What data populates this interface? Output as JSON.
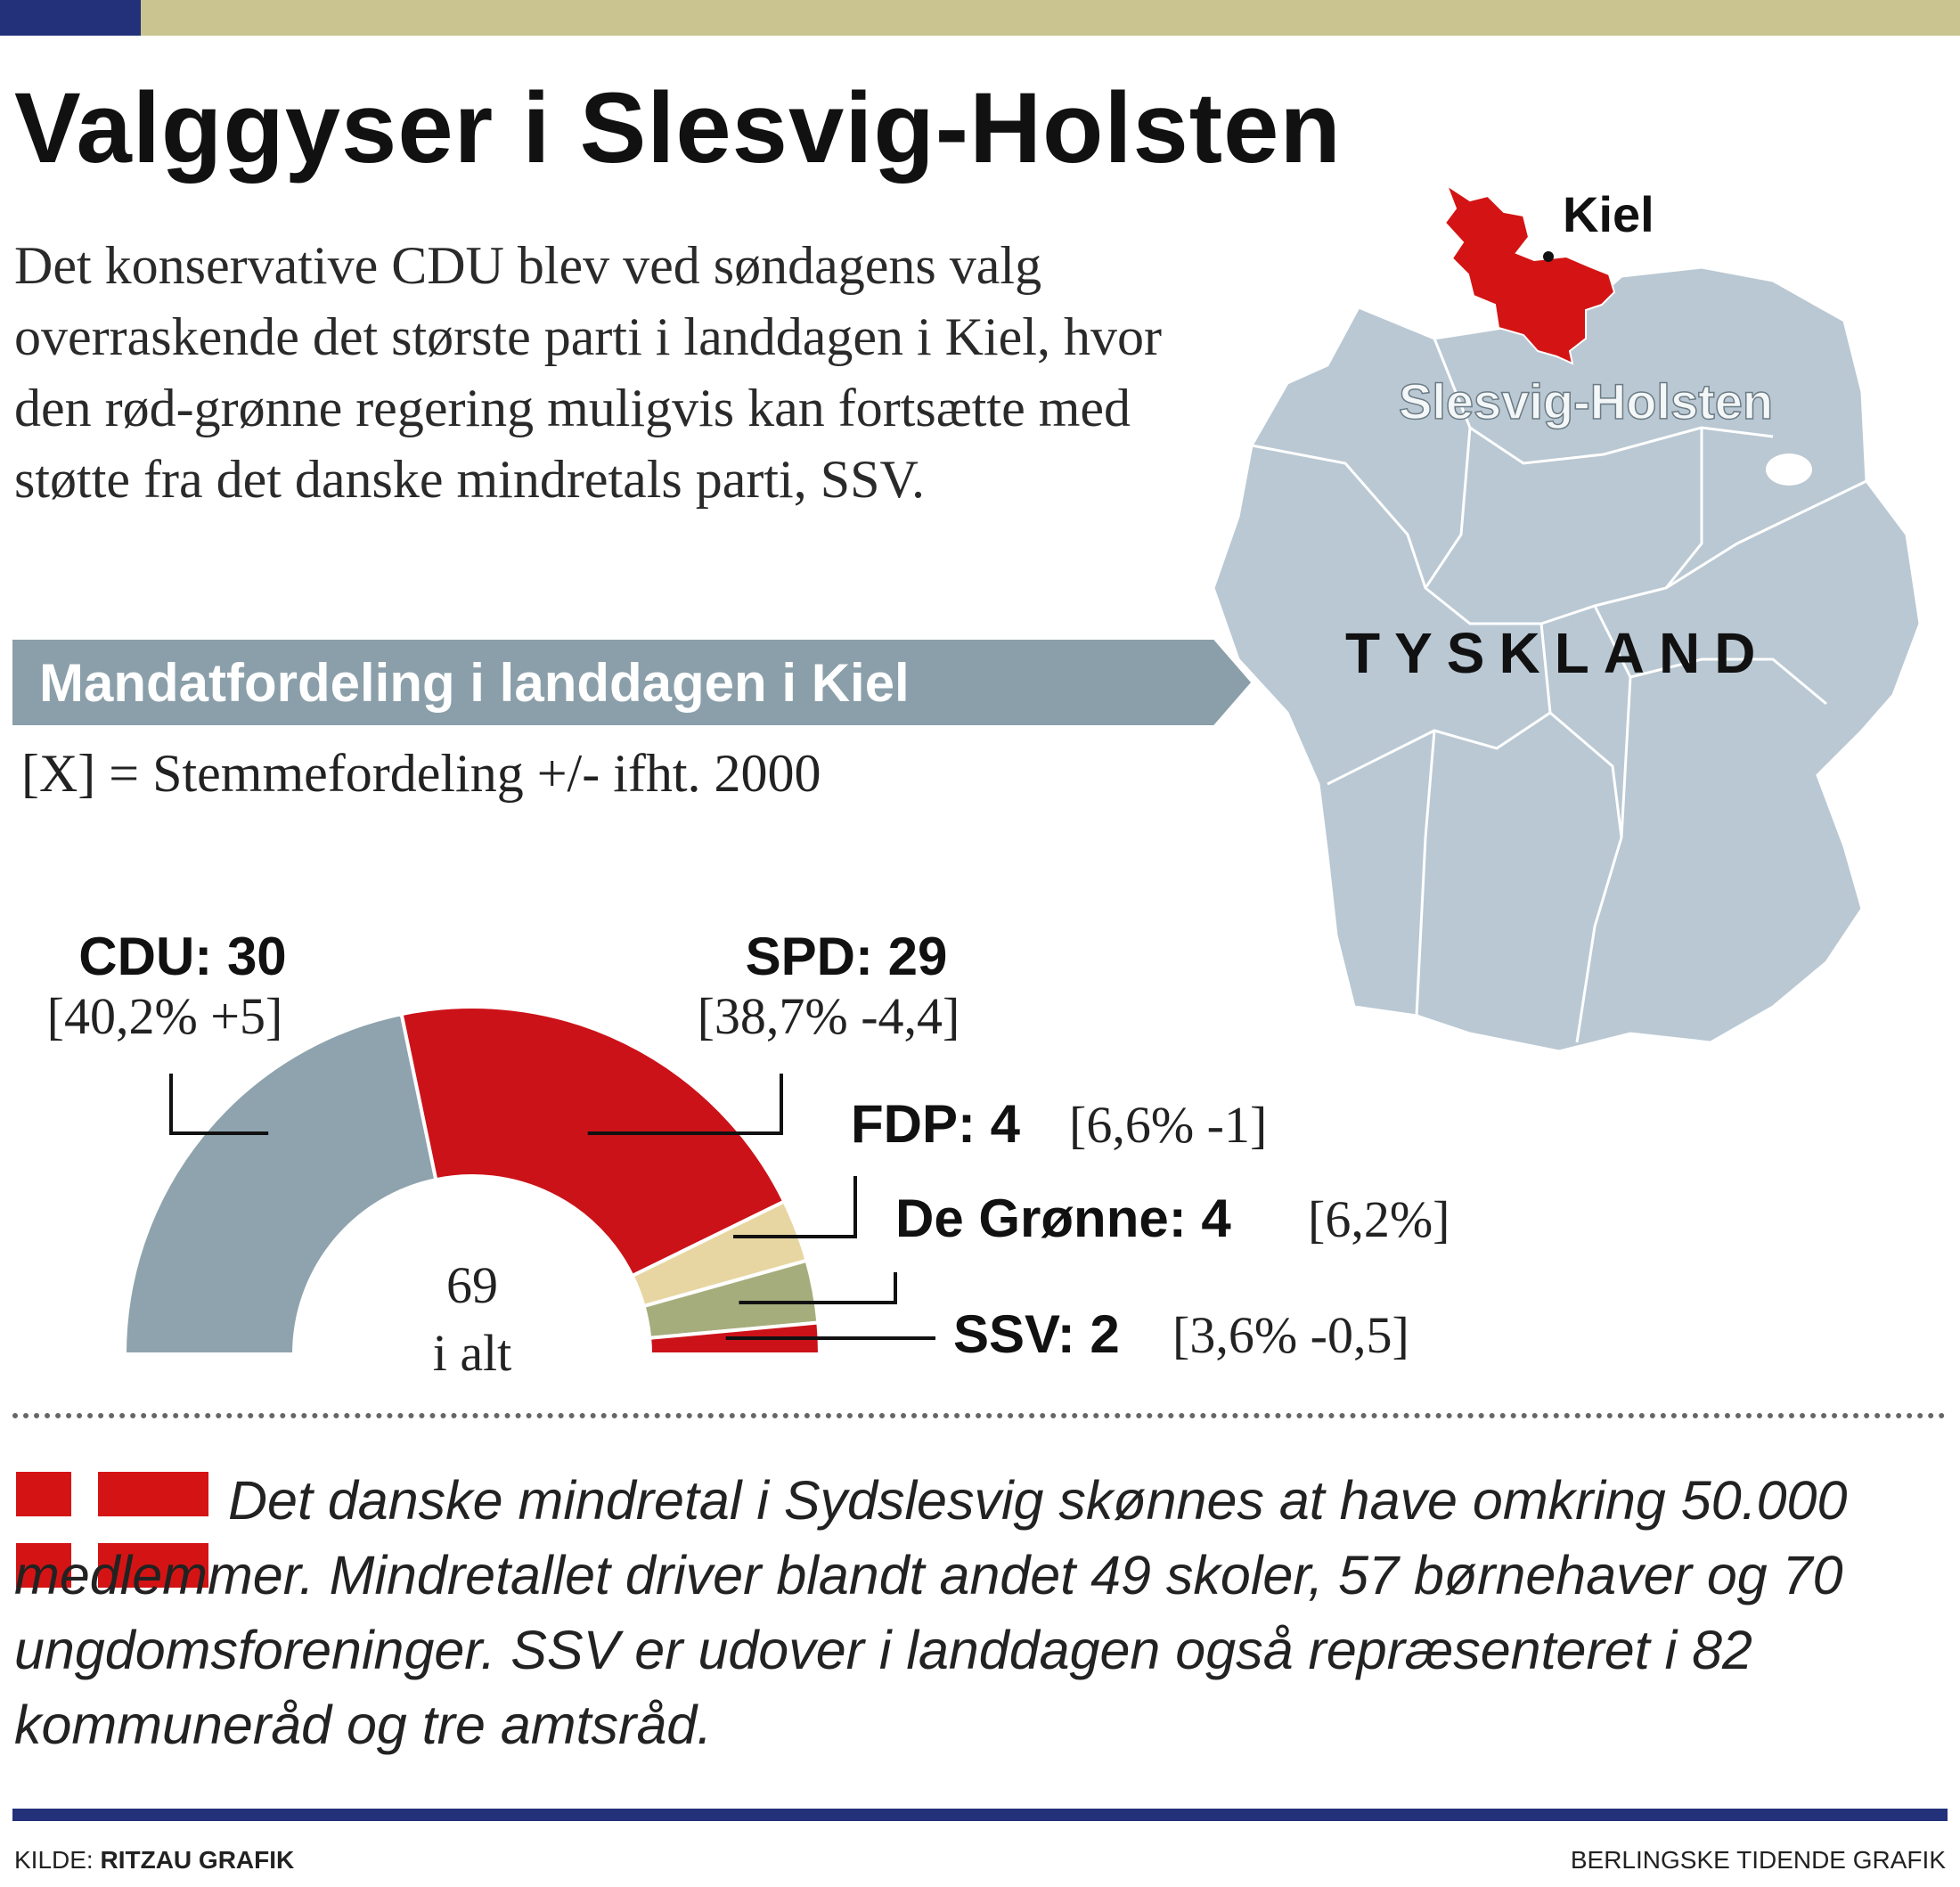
{
  "title": "Valggyser i Slesvig-Holsten",
  "intro": "Det konservative CDU blev ved søndagens valg overraskende det største parti i landdagen i Kiel, hvor den rød-grønne regering muligvis kan fortsætte med støtte fra det danske mindretals parti, SSV.",
  "band_title": "Mandatfordeling i landdagen i Kiel",
  "legend_note": "[X] = Stemmefordeling +/- ifht. 2000",
  "chart_data": {
    "type": "pie",
    "shape": "half-donut",
    "center_label": [
      "69",
      "i alt"
    ],
    "series": [
      {
        "label": "CDU: 30",
        "seats": 30,
        "detail": "[40,2% +5]",
        "color": "#8ea3ad"
      },
      {
        "label": "SPD: 29",
        "seats": 29,
        "detail": "[38,7% -4,4]",
        "color": "#cc1219"
      },
      {
        "label": "FDP: 4",
        "seats": 4,
        "detail": "[6,6% -1]",
        "color": "#e8d6a2"
      },
      {
        "label": "De Grønne: 4",
        "seats": 4,
        "detail": "[6,2%]",
        "color": "#a6ad7c"
      },
      {
        "label": "SSV: 2",
        "seats": 2,
        "detail": "[3,6% -0,5]",
        "color": "#cc1219"
      }
    ]
  },
  "map": {
    "city_label": "Kiel",
    "state_label": "Slesvig-Holsten",
    "country_label": "TYSKLAND",
    "state_color": "#d41414",
    "country_color": "#b9c8d3"
  },
  "footnote": "Det danske mindretal i Sydslesvig skønnes at have omkring 50.000 medlemmer. Mindretallet driver blandt andet 49 skoler, 57 børnehaver og 70 ungdomsforeninger. SSV er udover i landdagen også repræsenteret i 82 kommuneråd og tre amtsråd.",
  "source": {
    "prefix": "KILDE:",
    "name": "RITZAU GRAFIK"
  },
  "credit": "BERLINGSKE TIDENDE GRAFIK"
}
